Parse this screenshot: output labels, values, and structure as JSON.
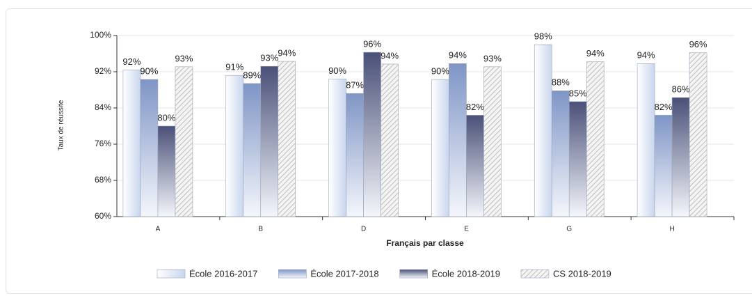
{
  "chart_data": {
    "type": "bar",
    "x_label": "Français par classe",
    "y_label": "Taux de réussite",
    "categories": [
      "A",
      "B",
      "D",
      "E",
      "G",
      "H"
    ],
    "ylim": [
      60,
      100
    ],
    "yticks": [
      {
        "value": 60,
        "label": "60%"
      },
      {
        "value": 68,
        "label": "68%"
      },
      {
        "value": 76,
        "label": "76%"
      },
      {
        "value": 84,
        "label": "84%"
      },
      {
        "value": 92,
        "label": "92%"
      },
      {
        "value": 100,
        "label": "100%"
      }
    ],
    "grid": true,
    "legend": "bottom",
    "series": [
      {
        "name": "École 2016-2017",
        "color": "#c9d6ee",
        "values": [
          92.4,
          91.2,
          90.4,
          90.3,
          98.0,
          93.8
        ],
        "value_labels": [
          "92%",
          "91%",
          "90%",
          "90%",
          "98%",
          "94%"
        ]
      },
      {
        "name": "École 2017-2018",
        "color": "#7f95c6",
        "values": [
          90.3,
          89.4,
          87.2,
          93.8,
          87.8,
          82.4
        ],
        "value_labels": [
          "90%",
          "89%",
          "87%",
          "94%",
          "88%",
          "82%"
        ]
      },
      {
        "name": "École 2018-2019",
        "color": "#4a5078",
        "values": [
          80.0,
          93.2,
          96.3,
          82.4,
          85.4,
          86.3
        ],
        "value_labels": [
          "80%",
          "93%",
          "96%",
          "82%",
          "85%",
          "86%"
        ]
      },
      {
        "name": "CS 2018-2019",
        "color": "#bdbdbd",
        "hatch": true,
        "values": [
          93.1,
          94.3,
          93.7,
          93.1,
          94.2,
          96.2
        ],
        "value_labels": [
          "93%",
          "94%",
          "94%",
          "93%",
          "94%",
          "96%"
        ]
      }
    ]
  }
}
